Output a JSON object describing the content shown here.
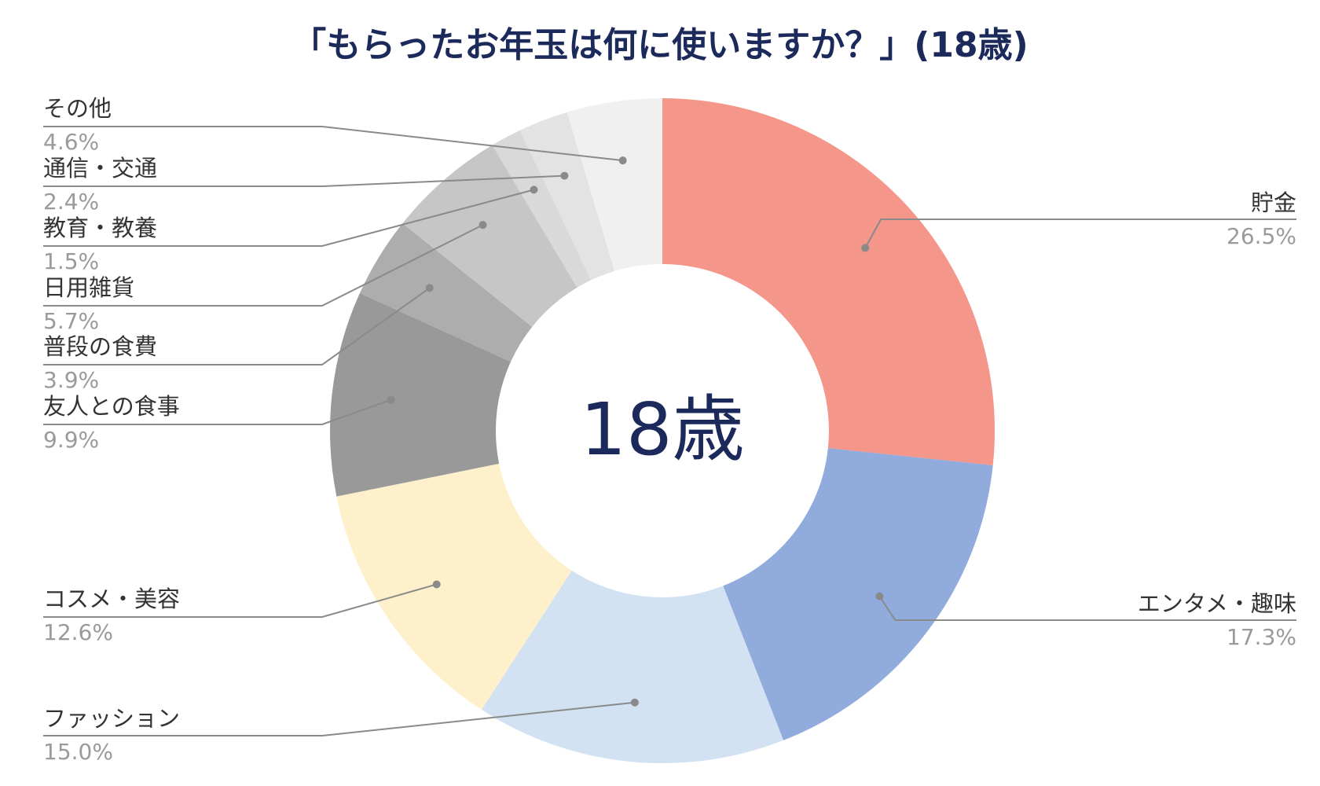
{
  "chart_data": {
    "type": "pie",
    "title": "「もらったお年玉は何に使いますか？」(18歳)",
    "center_label": "18歳",
    "legend": "labels-with-leader-lines",
    "slices": [
      {
        "label": "貯金",
        "value": 26.5,
        "value_label": "26.5%",
        "color": "#f4968a"
      },
      {
        "label": "エンタメ・趣味",
        "value": 17.3,
        "value_label": "17.3%",
        "color": "#91abdc"
      },
      {
        "label": "ファッション",
        "value": 15.0,
        "value_label": "15.0%",
        "color": "#d2e2f3"
      },
      {
        "label": "コスメ・美容",
        "value": 12.6,
        "value_label": "12.6%",
        "color": "#fdf0ca"
      },
      {
        "label": "友人との食事",
        "value": 9.9,
        "value_label": "9.9%",
        "color": "#999999"
      },
      {
        "label": "普段の食費",
        "value": 3.9,
        "value_label": "3.9%",
        "color": "#adadad"
      },
      {
        "label": "日用雑貨",
        "value": 5.7,
        "value_label": "5.7%",
        "color": "#c6c6c6"
      },
      {
        "label": "教育・教養",
        "value": 1.5,
        "value_label": "1.5%",
        "color": "#d9d9d9"
      },
      {
        "label": "通信・交通",
        "value": 2.4,
        "value_label": "2.4%",
        "color": "#e3e3e3"
      },
      {
        "label": "その他",
        "value": 4.6,
        "value_label": "4.6%",
        "color": "#f0f0f0"
      }
    ]
  }
}
